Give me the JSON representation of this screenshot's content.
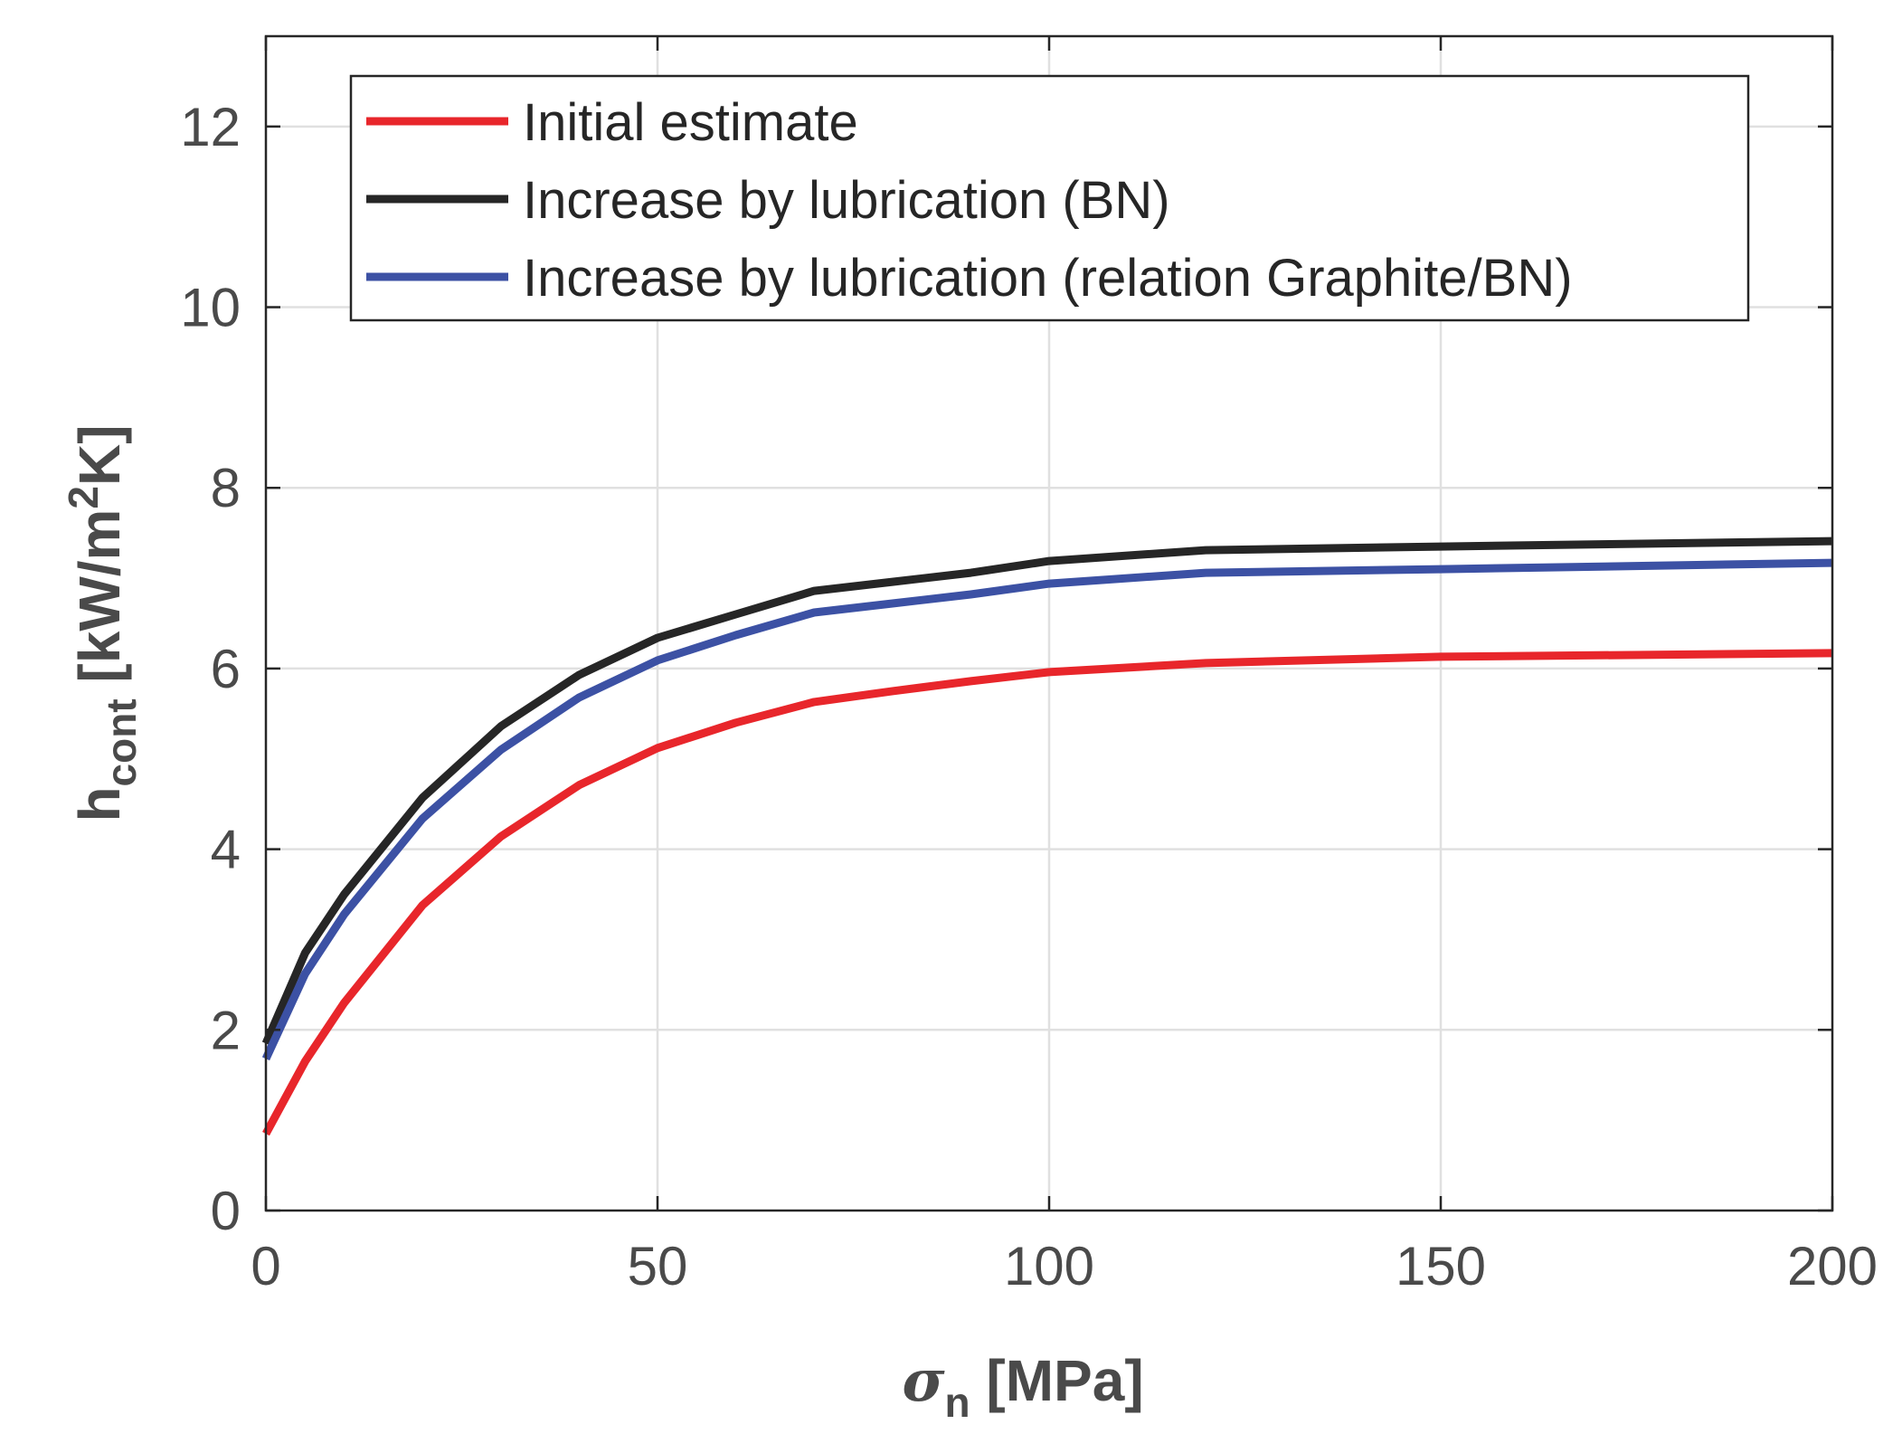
{
  "chart_data": {
    "type": "line",
    "title": "",
    "xlabel": {
      "symbol": "σ",
      "subscript": "n",
      "unit": " [MPa]"
    },
    "ylabel": {
      "symbol": "h",
      "subscript": "cont",
      "unit_pre": " [kW/m",
      "superscript": "2",
      "unit_post": "K]"
    },
    "xlim": [
      0,
      200
    ],
    "ylim": [
      0,
      13
    ],
    "xticks": [
      0,
      50,
      100,
      150,
      200
    ],
    "yticks": [
      0,
      2,
      4,
      6,
      8,
      10,
      12
    ],
    "xtick_labels": [
      "0",
      "50",
      "100",
      "150",
      "200"
    ],
    "ytick_labels": [
      "0",
      "2",
      "4",
      "6",
      "8",
      "10",
      "12"
    ],
    "grid": true,
    "legend_position": "top",
    "series": [
      {
        "name": "Initial estimate",
        "color": "#e8262b",
        "x": [
          0,
          5,
          10,
          20,
          30,
          40,
          50,
          60,
          70,
          80,
          90,
          100,
          120,
          150,
          200
        ],
        "y": [
          0.85,
          1.65,
          2.3,
          3.38,
          4.14,
          4.71,
          5.12,
          5.4,
          5.63,
          5.75,
          5.86,
          5.96,
          6.06,
          6.13,
          6.17
        ]
      },
      {
        "name": "Increase by lubrication (BN)",
        "color": "#262626",
        "x": [
          0,
          5,
          10,
          20,
          30,
          40,
          50,
          60,
          70,
          80,
          90,
          100,
          120,
          150,
          200
        ],
        "y": [
          1.85,
          2.85,
          3.5,
          4.57,
          5.36,
          5.93,
          6.34,
          6.6,
          6.86,
          6.96,
          7.06,
          7.19,
          7.31,
          7.35,
          7.41
        ]
      },
      {
        "name": "Increase by lubrication (relation Graphite/BN)",
        "color": "#3c51a4",
        "x": [
          0,
          5,
          10,
          20,
          30,
          40,
          50,
          60,
          70,
          80,
          90,
          100,
          120,
          150,
          200
        ],
        "y": [
          1.68,
          2.62,
          3.28,
          4.34,
          5.1,
          5.68,
          6.09,
          6.37,
          6.62,
          6.72,
          6.82,
          6.94,
          7.06,
          7.1,
          7.17
        ]
      }
    ]
  }
}
